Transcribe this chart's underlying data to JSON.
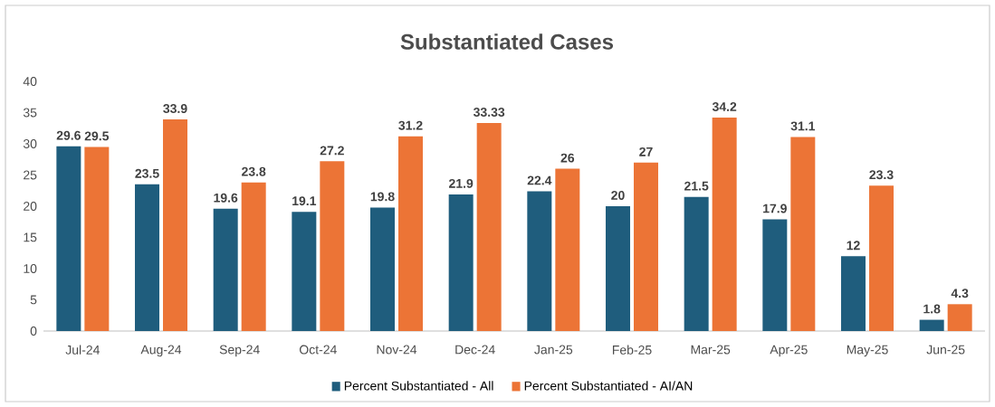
{
  "chart_data": {
    "type": "bar",
    "title": "Substantiated Cases",
    "categories": [
      "Jul-24",
      "Aug-24",
      "Sep-24",
      "Oct-24",
      "Nov-24",
      "Dec-24",
      "Jan-25",
      "Feb-25",
      "Mar-25",
      "Apr-25",
      "May-25",
      "Jun-25"
    ],
    "series": [
      {
        "name": "Percent Substantiated - All",
        "color": "#1f5d7d",
        "values": [
          29.6,
          23.5,
          19.6,
          19.1,
          19.8,
          21.9,
          22.4,
          20,
          21.5,
          17.9,
          12,
          1.8
        ]
      },
      {
        "name": "Percent Substantiated - AI/AN",
        "color": "#ec7436",
        "values": [
          29.5,
          33.9,
          23.8,
          27.2,
          31.2,
          33.33,
          26,
          27,
          34.2,
          31.1,
          23.3,
          4.3
        ]
      }
    ],
    "ylim": [
      0,
      40
    ],
    "yticks": [
      0,
      5,
      10,
      15,
      20,
      25,
      30,
      35,
      40
    ],
    "grid": false,
    "legend": "bottom",
    "data_labels": true
  }
}
